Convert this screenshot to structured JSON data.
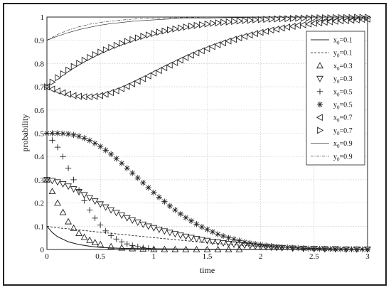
{
  "chart_data": {
    "type": "line",
    "xlabel": "time",
    "ylabel": "probability",
    "xlim": [
      0,
      3
    ],
    "ylim": [
      0,
      1
    ],
    "x_ticks": [
      "0",
      "0.5",
      "1",
      "1.5",
      "2",
      "2.5",
      "3"
    ],
    "y_ticks": [
      "0",
      "0.1",
      "0.2",
      "0.3",
      "0.4",
      "0.5",
      "0.6",
      "0.7",
      "0.8",
      "0.9",
      "1"
    ],
    "grid": true,
    "legend_position": "top-right",
    "series": [
      {
        "name": "x",
        "sub": "0",
        "value_label": "=0.1",
        "style": "solid",
        "x": [
          0,
          0.05,
          0.1,
          0.2,
          0.3,
          0.4,
          0.5,
          0.7,
          1.0,
          1.5,
          2.0,
          2.5,
          3.0
        ],
        "values": [
          0.1,
          0.073,
          0.055,
          0.033,
          0.021,
          0.014,
          0.009,
          0.005,
          0.003,
          0.001,
          0.0005,
          0.0002,
          0.0001
        ]
      },
      {
        "name": "y",
        "sub": "0",
        "value_label": "=0.1",
        "style": "dashed",
        "x": [
          0,
          0.1,
          0.2,
          0.3,
          0.5,
          0.7,
          1.0,
          1.25,
          1.5,
          1.75,
          2.0,
          2.5,
          3.0
        ],
        "values": [
          0.1,
          0.093,
          0.089,
          0.084,
          0.074,
          0.065,
          0.051,
          0.04,
          0.029,
          0.02,
          0.013,
          0.005,
          0.001
        ]
      },
      {
        "name": "x",
        "sub": "0",
        "value_label": "=0.3",
        "style": "triangle-up",
        "x": [
          0,
          0.05,
          0.1,
          0.15,
          0.2,
          0.25,
          0.3,
          0.35,
          0.4,
          0.45,
          0.5,
          0.6,
          0.7,
          0.8,
          0.9,
          1.0,
          1.1,
          1.2,
          1.3,
          1.4,
          1.5,
          1.6,
          1.7,
          1.8
        ],
        "values": [
          0.3,
          0.25,
          0.2,
          0.16,
          0.12,
          0.092,
          0.07,
          0.053,
          0.04,
          0.03,
          0.022,
          0.013,
          0.007,
          0.004,
          0.002,
          0.001,
          0.0006,
          0.0003,
          0.0002,
          0.0001,
          0,
          0,
          0,
          0
        ]
      },
      {
        "name": "y",
        "sub": "0",
        "value_label": "=0.3",
        "style": "triangle-down",
        "x": [
          0,
          0.05,
          0.1,
          0.15,
          0.2,
          0.25,
          0.3,
          0.35,
          0.4,
          0.45,
          0.5,
          0.55,
          0.6,
          0.65,
          0.7,
          0.75,
          0.8,
          0.85,
          0.9,
          0.95,
          1.0,
          1.05,
          1.1,
          1.15,
          1.2,
          1.25,
          1.3,
          1.35,
          1.4,
          1.45,
          1.5,
          1.55,
          1.6,
          1.65,
          1.7,
          1.75,
          1.8,
          1.85,
          1.9,
          1.95,
          2.0,
          2.05,
          2.1,
          2.15,
          2.2,
          2.3,
          2.4,
          2.5,
          2.6,
          2.7,
          2.8,
          2.9,
          3.0
        ],
        "values": [
          0.3,
          0.296,
          0.29,
          0.282,
          0.272,
          0.26,
          0.248,
          0.235,
          0.222,
          0.208,
          0.195,
          0.182,
          0.17,
          0.158,
          0.147,
          0.136,
          0.126,
          0.117,
          0.108,
          0.1,
          0.093,
          0.086,
          0.079,
          0.073,
          0.067,
          0.061,
          0.056,
          0.051,
          0.046,
          0.042,
          0.038,
          0.034,
          0.031,
          0.028,
          0.025,
          0.022,
          0.02,
          0.018,
          0.016,
          0.014,
          0.012,
          0.011,
          0.009,
          0.008,
          0.007,
          0.005,
          0.004,
          0.003,
          0.002,
          0.002,
          0.001,
          0.001,
          0.001
        ]
      },
      {
        "name": "x",
        "sub": "0",
        "value_label": "=0.5",
        "style": "plus",
        "x": [
          0,
          0.05,
          0.1,
          0.15,
          0.2,
          0.25,
          0.3,
          0.35,
          0.4,
          0.45,
          0.5,
          0.55,
          0.6,
          0.65,
          0.7,
          0.75,
          0.8,
          0.85,
          0.9,
          0.95,
          1.0
        ],
        "values": [
          0.5,
          0.47,
          0.44,
          0.4,
          0.35,
          0.3,
          0.255,
          0.21,
          0.17,
          0.135,
          0.105,
          0.08,
          0.06,
          0.045,
          0.033,
          0.024,
          0.017,
          0.012,
          0.008,
          0.005,
          0.003
        ]
      },
      {
        "name": "y",
        "sub": "0",
        "value_label": "=0.5",
        "style": "asterisk",
        "x": [
          0,
          0.05,
          0.1,
          0.15,
          0.2,
          0.25,
          0.3,
          0.35,
          0.4,
          0.45,
          0.5,
          0.55,
          0.6,
          0.65,
          0.7,
          0.75,
          0.8,
          0.85,
          0.9,
          0.95,
          1.0,
          1.05,
          1.1,
          1.15,
          1.2,
          1.25,
          1.3,
          1.35,
          1.4,
          1.45,
          1.5,
          1.55,
          1.6,
          1.65,
          1.7,
          1.75,
          1.8,
          1.85,
          1.9,
          1.95,
          2.0,
          2.05,
          2.1,
          2.15,
          2.2,
          2.25,
          2.3,
          2.35,
          2.4,
          2.45,
          2.5,
          2.55,
          2.6,
          2.65,
          2.7,
          2.75,
          2.8,
          2.85,
          2.9,
          2.95,
          3.0
        ],
        "values": [
          0.5,
          0.5,
          0.5,
          0.499,
          0.497,
          0.493,
          0.487,
          0.479,
          0.469,
          0.457,
          0.443,
          0.427,
          0.41,
          0.391,
          0.371,
          0.35,
          0.329,
          0.308,
          0.287,
          0.266,
          0.245,
          0.225,
          0.206,
          0.187,
          0.17,
          0.153,
          0.137,
          0.123,
          0.109,
          0.097,
          0.086,
          0.076,
          0.066,
          0.058,
          0.05,
          0.044,
          0.038,
          0.032,
          0.028,
          0.024,
          0.02,
          0.017,
          0.015,
          0.012,
          0.01,
          0.009,
          0.007,
          0.006,
          0.005,
          0.004,
          0.004,
          0.003,
          0.003,
          0.002,
          0.002,
          0.001,
          0.001,
          0.001,
          0.001,
          0.001,
          0.001
        ]
      },
      {
        "name": "x",
        "sub": "0",
        "value_label": "=0.7",
        "style": "triangle-left",
        "x": [
          0,
          0.05,
          0.1,
          0.15,
          0.2,
          0.25,
          0.3,
          0.35,
          0.4,
          0.45,
          0.5,
          0.55,
          0.6,
          0.65,
          0.7,
          0.75,
          0.8,
          0.85,
          0.9,
          0.95,
          1.0,
          1.05,
          1.1,
          1.15,
          1.2,
          1.25,
          1.3,
          1.35,
          1.4,
          1.45,
          1.5,
          1.55,
          1.6,
          1.65,
          1.7,
          1.75,
          1.8,
          1.85,
          1.9,
          1.95,
          2.0,
          2.05,
          2.1,
          2.15,
          2.2,
          2.25,
          2.3,
          2.35,
          2.4,
          2.45,
          2.5,
          2.55,
          2.6,
          2.65,
          2.7,
          2.75,
          2.8,
          2.85,
          2.9,
          2.95,
          3.0
        ],
        "values": [
          0.7,
          0.69,
          0.682,
          0.674,
          0.668,
          0.662,
          0.659,
          0.657,
          0.657,
          0.659,
          0.662,
          0.668,
          0.675,
          0.683,
          0.692,
          0.702,
          0.713,
          0.724,
          0.735,
          0.747,
          0.759,
          0.77,
          0.782,
          0.793,
          0.804,
          0.815,
          0.826,
          0.836,
          0.846,
          0.855,
          0.864,
          0.873,
          0.881,
          0.889,
          0.897,
          0.904,
          0.911,
          0.917,
          0.923,
          0.929,
          0.934,
          0.939,
          0.944,
          0.948,
          0.953,
          0.957,
          0.96,
          0.964,
          0.967,
          0.97,
          0.973,
          0.975,
          0.978,
          0.98,
          0.982,
          0.984,
          0.985,
          0.987,
          0.988,
          0.99,
          0.991
        ]
      },
      {
        "name": "y",
        "sub": "0",
        "value_label": "=0.7",
        "style": "triangle-right",
        "x": [
          0,
          0.05,
          0.1,
          0.15,
          0.2,
          0.25,
          0.3,
          0.35,
          0.4,
          0.45,
          0.5,
          0.55,
          0.6,
          0.65,
          0.7,
          0.75,
          0.8,
          0.85,
          0.9,
          0.95,
          1.0,
          1.05,
          1.1,
          1.15,
          1.2,
          1.25,
          1.3,
          1.35,
          1.4,
          1.45,
          1.5,
          1.55,
          1.6,
          1.65,
          1.7,
          1.75,
          1.8,
          1.85,
          1.9,
          1.95,
          2.0,
          2.05,
          2.1,
          2.15,
          2.2,
          2.25,
          2.3,
          2.35,
          2.4,
          2.45,
          2.5,
          2.55,
          2.6,
          2.65,
          2.7,
          2.75,
          2.8,
          2.85,
          2.9,
          2.95,
          3.0
        ],
        "values": [
          0.7,
          0.72,
          0.739,
          0.756,
          0.772,
          0.787,
          0.801,
          0.814,
          0.826,
          0.838,
          0.849,
          0.859,
          0.869,
          0.878,
          0.887,
          0.895,
          0.903,
          0.91,
          0.917,
          0.923,
          0.929,
          0.935,
          0.94,
          0.945,
          0.949,
          0.953,
          0.957,
          0.961,
          0.964,
          0.967,
          0.97,
          0.973,
          0.975,
          0.977,
          0.979,
          0.981,
          0.983,
          0.985,
          0.986,
          0.988,
          0.989,
          0.99,
          0.991,
          0.992,
          0.993,
          0.993,
          0.994,
          0.995,
          0.995,
          0.996,
          0.996,
          0.997,
          0.997,
          0.997,
          0.998,
          0.998,
          0.998,
          0.998,
          0.999,
          0.999,
          0.999
        ]
      },
      {
        "name": "x",
        "sub": "0",
        "value_label": "=0.9",
        "style": "thin-solid",
        "x": [
          0,
          0.1,
          0.2,
          0.3,
          0.4,
          0.5,
          0.6,
          0.8,
          1.0,
          1.2,
          1.5,
          2.0,
          2.5,
          3.0
        ],
        "values": [
          0.9,
          0.918,
          0.933,
          0.946,
          0.956,
          0.965,
          0.972,
          0.982,
          0.988,
          0.993,
          0.996,
          0.999,
          1.0,
          1.0
        ]
      },
      {
        "name": "y",
        "sub": "0",
        "value_label": "=0.9",
        "style": "thin-dashdot",
        "x": [
          0,
          0.1,
          0.2,
          0.3,
          0.4,
          0.5,
          0.6,
          0.8,
          1.0,
          1.2,
          1.5,
          2.0,
          2.5,
          3.0
        ],
        "values": [
          0.9,
          0.925,
          0.944,
          0.958,
          0.969,
          0.977,
          0.983,
          0.991,
          0.995,
          0.997,
          0.999,
          1.0,
          1.0,
          1.0
        ]
      }
    ]
  }
}
